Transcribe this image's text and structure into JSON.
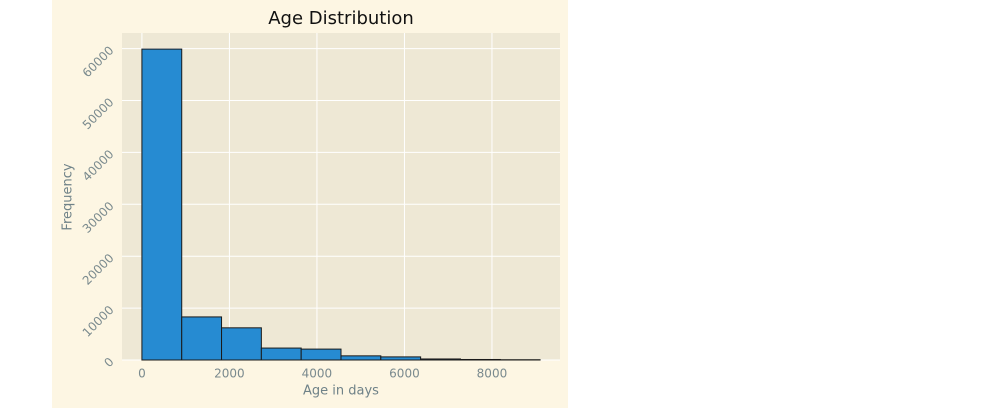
{
  "chart_data": {
    "type": "histogram",
    "title": "Age Distribution",
    "x_label": "Age in days",
    "y_label": "Frequency",
    "bins": [
      0,
      910,
      1820,
      2730,
      3640,
      4550,
      5460,
      6370,
      7280,
      8190,
      9100
    ],
    "values": [
      59900,
      8300,
      6200,
      2300,
      2100,
      800,
      600,
      200,
      100,
      50
    ],
    "color": "#268bd2",
    "edgecolor": "#1a1a1a",
    "xlim": [
      -455,
      9555
    ],
    "xticks": [
      0,
      2000,
      4000,
      6000,
      8000
    ],
    "ylim": [
      0,
      63000
    ],
    "yticks": [
      0,
      10000,
      20000,
      30000,
      40000,
      50000,
      60000
    ],
    "grid": true
  }
}
